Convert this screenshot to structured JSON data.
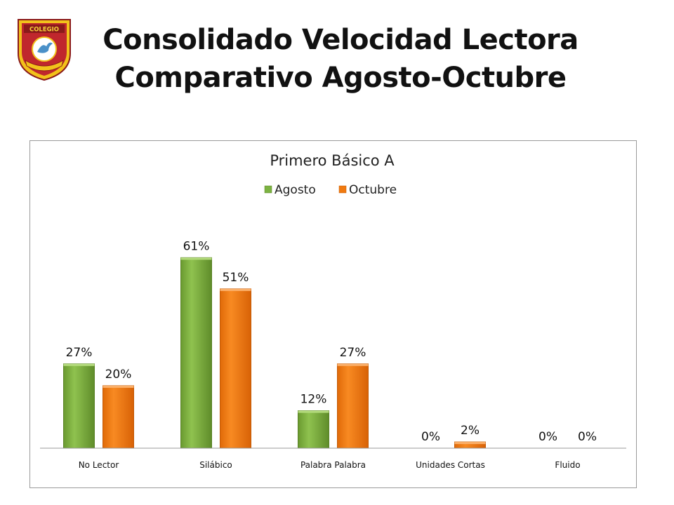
{
  "header": {
    "title_line1": "Consolidado Velocidad Lectora",
    "title_line2": "Comparativo Agosto-Octubre",
    "logo_text": "COLEGIO"
  },
  "colors": {
    "agosto": "#7cb342",
    "octubre": "#f07a10"
  },
  "chart_data": {
    "type": "bar",
    "title": "Primero Básico A",
    "categories": [
      "No Lector",
      "Silábico",
      "Palabra Palabra",
      "Unidades Cortas",
      "Fluido"
    ],
    "series": [
      {
        "name": "Agosto",
        "values": [
          27,
          61,
          12,
          0,
          0
        ],
        "labels": [
          "27%",
          "61%",
          "12%",
          "0%",
          "0%"
        ]
      },
      {
        "name": "Octubre",
        "values": [
          20,
          51,
          27,
          2,
          0
        ],
        "labels": [
          "20%",
          "51%",
          "27%",
          "2%",
          "0%"
        ]
      }
    ],
    "unit": "%",
    "ylim": [
      0,
      75
    ],
    "legend": "top",
    "grid": false
  }
}
